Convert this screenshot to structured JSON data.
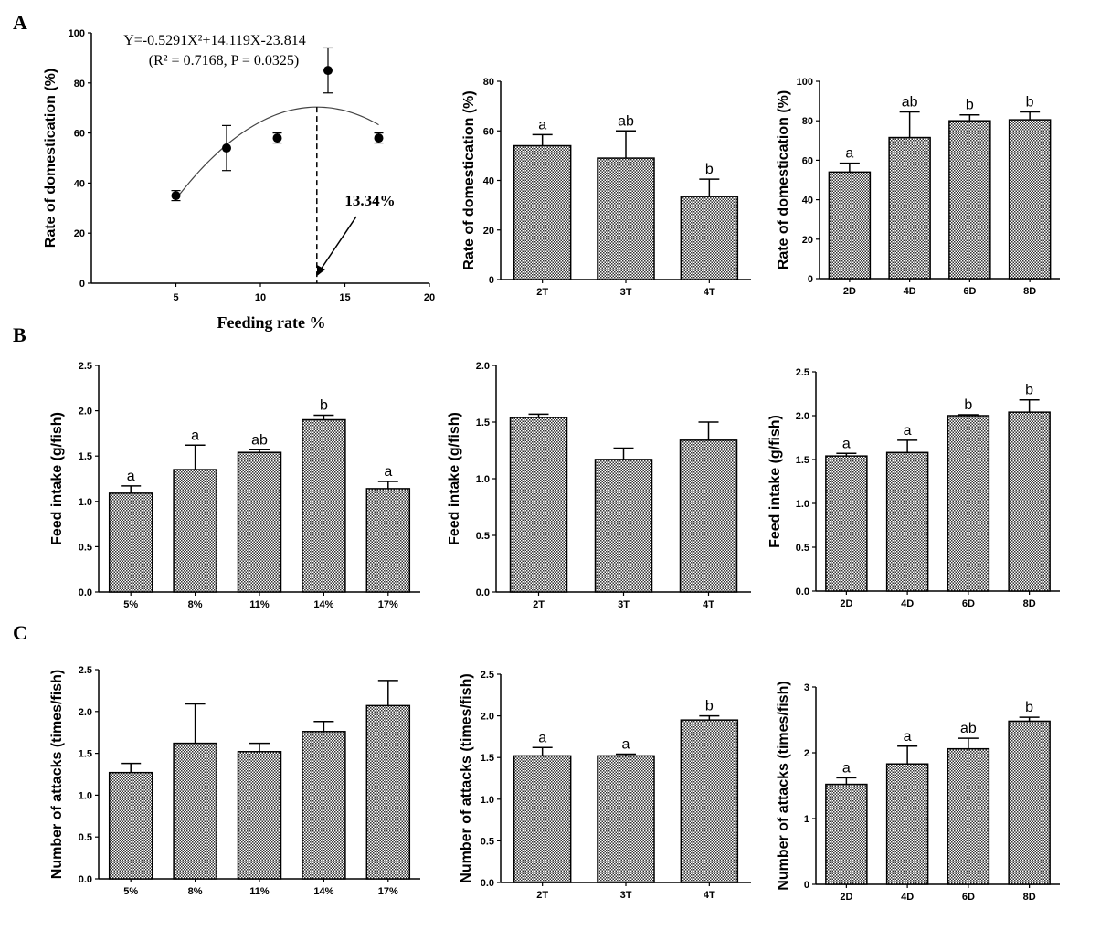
{
  "panel_labels": [
    "A",
    "B",
    "C"
  ],
  "chart_data": [
    {
      "id": "A1",
      "panel": "A",
      "type": "scatter",
      "x": [
        5,
        8,
        11,
        14,
        17
      ],
      "y": [
        35,
        54,
        58,
        85,
        58
      ],
      "err": [
        2,
        9,
        2,
        9,
        2
      ],
      "xlim": [
        0,
        20
      ],
      "ylim": [
        0,
        100
      ],
      "xticks": [
        5,
        10,
        15,
        20
      ],
      "yticks": [
        0,
        20,
        40,
        60,
        80,
        100
      ],
      "xlabel": "Feeding rate %",
      "ylabel": "Rate of domestication (%)",
      "fit": {
        "a": -0.5291,
        "b": 14.119,
        "c": -23.814,
        "x_range": [
          5,
          17
        ]
      },
      "equation": "Y=-0.5291X²+14.119X-23.814",
      "r2_text": "(R² = 0.7168, P = 0.0325)",
      "optimum_x": 13.34,
      "optimum_label": "13.34%"
    },
    {
      "id": "A2",
      "panel": "A",
      "type": "bar",
      "categories": [
        "2T",
        "3T",
        "4T"
      ],
      "values": [
        54,
        49,
        33.5
      ],
      "err": [
        4.5,
        11,
        7
      ],
      "letters": [
        "a",
        "ab",
        "b"
      ],
      "ylim": [
        0,
        80
      ],
      "yticks": [
        0,
        20,
        40,
        60,
        80
      ],
      "ylabel": "Rate of domestication (%)"
    },
    {
      "id": "A3",
      "panel": "A",
      "type": "bar",
      "categories": [
        "2D",
        "4D",
        "6D",
        "8D"
      ],
      "values": [
        54,
        71.5,
        80,
        80.5
      ],
      "err": [
        4.5,
        13,
        3,
        4
      ],
      "letters": [
        "a",
        "ab",
        "b",
        "b"
      ],
      "ylim": [
        0,
        100
      ],
      "yticks": [
        0,
        20,
        40,
        60,
        80,
        100
      ],
      "ylabel": "Rate of domestication (%)"
    },
    {
      "id": "B1",
      "panel": "B",
      "type": "bar",
      "categories": [
        "5%",
        "8%",
        "11%",
        "14%",
        "17%"
      ],
      "values": [
        1.09,
        1.35,
        1.54,
        1.9,
        1.14
      ],
      "err": [
        0.08,
        0.27,
        0.03,
        0.05,
        0.08
      ],
      "letters": [
        "a",
        "a",
        "ab",
        "b",
        "a"
      ],
      "ylim": [
        0,
        2.5
      ],
      "yticks": [
        "0.0",
        "0.5",
        "1.0",
        "1.5",
        "2.0",
        "2.5"
      ],
      "ylabel": "Feed intake (g/fish)"
    },
    {
      "id": "B2",
      "panel": "B",
      "type": "bar",
      "categories": [
        "2T",
        "3T",
        "4T"
      ],
      "values": [
        1.54,
        1.17,
        1.34
      ],
      "err": [
        0.03,
        0.1,
        0.16
      ],
      "letters": [
        "",
        "",
        ""
      ],
      "ylim": [
        0,
        2.0
      ],
      "yticks": [
        "0.0",
        "0.5",
        "1.0",
        "1.5",
        "2.0"
      ],
      "ylabel": "Feed intake (g/fish)"
    },
    {
      "id": "B3",
      "panel": "B",
      "type": "bar",
      "categories": [
        "2D",
        "4D",
        "6D",
        "8D"
      ],
      "values": [
        1.54,
        1.58,
        2.0,
        2.04
      ],
      "err": [
        0.03,
        0.14,
        0.01,
        0.14
      ],
      "letters": [
        "a",
        "a",
        "b",
        "b"
      ],
      "ylim": [
        0,
        2.5
      ],
      "yticks": [
        "0.0",
        "0.5",
        "1.0",
        "1.5",
        "2.0",
        "2.5"
      ],
      "ylabel": "Feed intake (g/fish)"
    },
    {
      "id": "C1",
      "panel": "C",
      "type": "bar",
      "categories": [
        "5%",
        "8%",
        "11%",
        "14%",
        "17%"
      ],
      "values": [
        1.27,
        1.62,
        1.52,
        1.76,
        2.07
      ],
      "err": [
        0.11,
        0.47,
        0.1,
        0.12,
        0.3
      ],
      "letters": [
        "",
        "",
        "",
        "",
        ""
      ],
      "ylim": [
        0,
        2.5
      ],
      "yticks": [
        "0.0",
        "0.5",
        "1.0",
        "1.5",
        "2.0",
        "2.5"
      ],
      "ylabel": "Number of attacks (times/fish)"
    },
    {
      "id": "C2",
      "panel": "C",
      "type": "bar",
      "categories": [
        "2T",
        "3T",
        "4T"
      ],
      "values": [
        1.52,
        1.52,
        1.95
      ],
      "err": [
        0.1,
        0.02,
        0.05
      ],
      "letters": [
        "a",
        "a",
        "b"
      ],
      "ylim": [
        0,
        2.5
      ],
      "yticks": [
        "0.0",
        "0.5",
        "1.0",
        "1.5",
        "2.0",
        "2.5"
      ],
      "ylabel": "Number of attacks (times/fish)"
    },
    {
      "id": "C3",
      "panel": "C",
      "type": "bar",
      "categories": [
        "2D",
        "4D",
        "6D",
        "8D"
      ],
      "values": [
        1.52,
        1.83,
        2.06,
        2.48
      ],
      "err": [
        0.1,
        0.27,
        0.16,
        0.06
      ],
      "letters": [
        "a",
        "a",
        "ab",
        "b"
      ],
      "ylim": [
        0,
        3
      ],
      "yticks": [
        "0",
        "1",
        "2",
        "3"
      ],
      "ylabel": "Number of attacks (times/fish)"
    }
  ]
}
